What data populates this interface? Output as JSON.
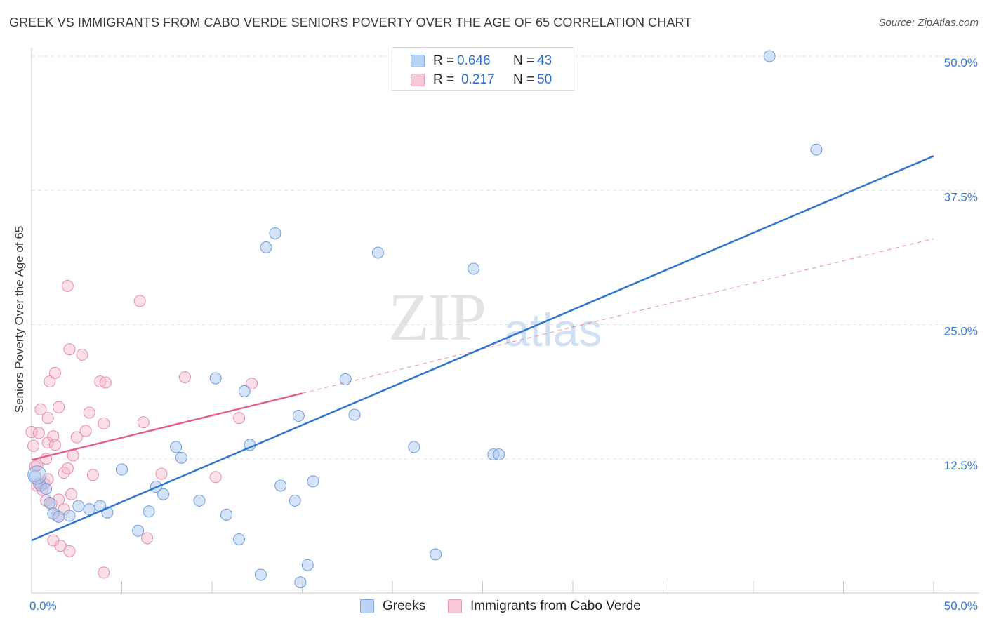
{
  "header": {
    "title": "GREEK VS IMMIGRANTS FROM CABO VERDE SENIORS POVERTY OVER THE AGE OF 65 CORRELATION CHART",
    "source": "Source: ZipAtlas.com"
  },
  "watermark": {
    "zip": "ZIP",
    "atlas": "atlas"
  },
  "legend": {
    "rows": [
      {
        "r_label": "R =",
        "r_value": "0.646",
        "n_label": "N =",
        "n_value": "43"
      },
      {
        "r_label": "R =",
        "r_value": "0.217",
        "n_label": "N =",
        "n_value": "50"
      }
    ],
    "series_names": [
      "Greeks",
      "Immigrants from Cabo Verde"
    ]
  },
  "colors": {
    "blue_fill": "#a9c8ef",
    "blue_stroke": "#6d9edb",
    "blue_line": "#2f75d0",
    "pink_fill": "#f5b8cb",
    "pink_stroke": "#e88aa8",
    "pink_line": "#e0608a",
    "axis_text_blue": "#3a7bd5",
    "grid": "#e0e0e0"
  },
  "chart_data": {
    "type": "scatter",
    "title": "GREEK VS IMMIGRANTS FROM CABO VERDE SENIORS POVERTY OVER THE AGE OF 65 CORRELATION CHART",
    "xlabel": "",
    "ylabel": "Seniors Poverty Over the Age of 65",
    "xlim": [
      0,
      50
    ],
    "ylim": [
      0,
      50
    ],
    "x_tick_labels": [
      "0.0%",
      "50.0%"
    ],
    "y_tick_values": [
      12.5,
      25.0,
      37.5,
      50.0
    ],
    "y_tick_labels": [
      "12.5%",
      "25.0%",
      "37.5%",
      "50.0%"
    ],
    "grid": true,
    "series": [
      {
        "name": "Greeks",
        "color": "#a9c8ef",
        "R": 0.646,
        "N": 43,
        "trend": {
          "x": [
            0,
            50
          ],
          "y": [
            4.9,
            40.7
          ],
          "style": "solid"
        },
        "points": [
          [
            0.2,
            10.9
          ],
          [
            0.5,
            10.0
          ],
          [
            0.8,
            9.7
          ],
          [
            1.0,
            8.4
          ],
          [
            1.2,
            7.4
          ],
          [
            1.5,
            7.1
          ],
          [
            2.1,
            7.2
          ],
          [
            2.6,
            8.1
          ],
          [
            3.2,
            7.8
          ],
          [
            4.2,
            7.5
          ],
          [
            3.8,
            8.1
          ],
          [
            5.0,
            11.5
          ],
          [
            5.9,
            5.8
          ],
          [
            6.5,
            7.6
          ],
          [
            6.9,
            9.9
          ],
          [
            7.3,
            9.2
          ],
          [
            8.0,
            13.6
          ],
          [
            8.3,
            12.6
          ],
          [
            9.3,
            8.6
          ],
          [
            10.2,
            20.0
          ],
          [
            10.8,
            7.3
          ],
          [
            11.5,
            5.0
          ],
          [
            11.8,
            18.8
          ],
          [
            12.1,
            13.8
          ],
          [
            12.7,
            1.7
          ],
          [
            13.0,
            32.2
          ],
          [
            14.9,
            1.0
          ],
          [
            13.5,
            33.5
          ],
          [
            13.8,
            10.0
          ],
          [
            14.6,
            8.6
          ],
          [
            14.8,
            16.5
          ],
          [
            15.3,
            2.6
          ],
          [
            15.6,
            10.4
          ],
          [
            17.4,
            19.9
          ],
          [
            17.9,
            16.6
          ],
          [
            19.2,
            31.7
          ],
          [
            21.2,
            13.6
          ],
          [
            22.4,
            3.6
          ],
          [
            24.5,
            30.2
          ],
          [
            25.6,
            12.9
          ],
          [
            25.9,
            12.9
          ],
          [
            40.9,
            50.0
          ],
          [
            43.5,
            41.3
          ]
        ]
      },
      {
        "name": "Immigrants from Cabo Verde",
        "color": "#f5b8cb",
        "R": 0.217,
        "N": 50,
        "trend": {
          "x": [
            0,
            15
          ],
          "y": [
            12.4,
            18.6
          ],
          "style": "solid",
          "dashed_extension": {
            "x": [
              15,
              50
            ],
            "y": [
              18.6,
              33.0
            ]
          }
        },
        "points": [
          [
            0.0,
            15.0
          ],
          [
            0.1,
            13.7
          ],
          [
            0.2,
            11.8
          ],
          [
            0.3,
            11.9
          ],
          [
            0.4,
            10.2
          ],
          [
            0.4,
            14.9
          ],
          [
            0.5,
            17.1
          ],
          [
            0.6,
            9.6
          ],
          [
            0.7,
            10.2
          ],
          [
            0.8,
            12.5
          ],
          [
            0.8,
            8.6
          ],
          [
            0.9,
            16.3
          ],
          [
            0.9,
            14.0
          ],
          [
            1.0,
            19.7
          ],
          [
            1.1,
            8.3
          ],
          [
            1.2,
            14.6
          ],
          [
            1.3,
            13.8
          ],
          [
            1.3,
            20.5
          ],
          [
            1.4,
            7.2
          ],
          [
            1.5,
            17.3
          ],
          [
            1.6,
            4.4
          ],
          [
            1.8,
            11.2
          ],
          [
            1.8,
            7.8
          ],
          [
            2.0,
            11.6
          ],
          [
            2.0,
            28.6
          ],
          [
            2.1,
            22.7
          ],
          [
            2.1,
            3.9
          ],
          [
            2.2,
            9.2
          ],
          [
            2.3,
            12.8
          ],
          [
            2.5,
            14.5
          ],
          [
            2.8,
            22.2
          ],
          [
            3.0,
            15.1
          ],
          [
            3.2,
            16.8
          ],
          [
            3.4,
            11.0
          ],
          [
            3.8,
            19.7
          ],
          [
            4.0,
            15.8
          ],
          [
            4.1,
            19.6
          ],
          [
            4.0,
            1.9
          ],
          [
            6.0,
            27.2
          ],
          [
            6.2,
            15.9
          ],
          [
            6.4,
            5.1
          ],
          [
            7.2,
            11.1
          ],
          [
            8.5,
            20.1
          ],
          [
            10.2,
            10.8
          ],
          [
            11.5,
            16.3
          ],
          [
            12.2,
            19.5
          ],
          [
            1.5,
            8.7
          ],
          [
            0.9,
            10.6
          ],
          [
            0.3,
            10.0
          ],
          [
            1.2,
            4.9
          ]
        ]
      }
    ]
  }
}
